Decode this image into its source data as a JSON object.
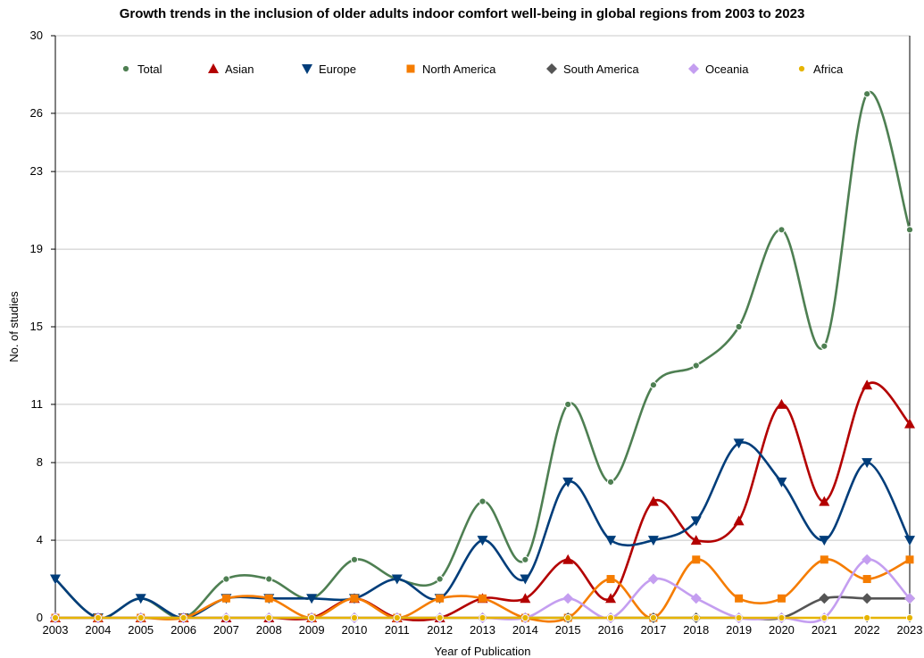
{
  "chart_data": {
    "type": "line",
    "title": "Growth trends in the inclusion of older adults indoor comfort well-being in global regions from 2003 to 2023",
    "xlabel": "Year of Publication",
    "ylabel": "No. of studies",
    "ylim": [
      0,
      30
    ],
    "y_ticks": [
      0,
      4,
      8,
      11,
      15,
      19,
      23,
      26,
      30
    ],
    "grid": "horizontal",
    "legend_position": "top",
    "categories": [
      "2003",
      "2004",
      "2005",
      "2006",
      "2007",
      "2008",
      "2009",
      "2010",
      "2011",
      "2012",
      "2013",
      "2014",
      "2015",
      "2016",
      "2017",
      "2018",
      "2019",
      "2020",
      "2021",
      "2022",
      "2023"
    ],
    "series": [
      {
        "name": "Total",
        "color": "#4e7f52",
        "marker": "circle",
        "values": [
          2,
          0,
          1,
          0,
          2,
          2,
          1,
          3,
          2,
          2,
          6,
          3,
          11,
          7,
          12,
          13,
          15,
          20,
          14,
          27,
          20
        ]
      },
      {
        "name": "Asian",
        "color": "#b30000",
        "marker": "triangle-up",
        "values": [
          0,
          0,
          0,
          0,
          0,
          0,
          0,
          1,
          0,
          0,
          1,
          1,
          3,
          1,
          6,
          4,
          5,
          11,
          6,
          12,
          10
        ]
      },
      {
        "name": "Europe",
        "color": "#003d7a",
        "marker": "triangle-down",
        "values": [
          2,
          0,
          1,
          0,
          1,
          1,
          1,
          1,
          2,
          1,
          4,
          2,
          7,
          4,
          4,
          5,
          9,
          7,
          4,
          8,
          4
        ]
      },
      {
        "name": "North America",
        "color": "#f57c00",
        "marker": "square",
        "values": [
          0,
          0,
          0,
          0,
          1,
          1,
          0,
          1,
          0,
          1,
          1,
          0,
          0,
          2,
          0,
          3,
          1,
          1,
          3,
          2,
          3
        ]
      },
      {
        "name": "South America",
        "color": "#555555",
        "marker": "diamond",
        "values": [
          0,
          0,
          0,
          0,
          0,
          0,
          0,
          0,
          0,
          0,
          0,
          0,
          0,
          0,
          0,
          0,
          0,
          0,
          1,
          1,
          1
        ]
      },
      {
        "name": "Oceania",
        "color": "#c49ef0",
        "marker": "diamond",
        "values": [
          0,
          0,
          0,
          0,
          0,
          0,
          0,
          0,
          0,
          0,
          0,
          0,
          1,
          0,
          2,
          1,
          0,
          0,
          0,
          3,
          1
        ]
      },
      {
        "name": "Africa",
        "color": "#e6b400",
        "marker": "circle",
        "values": [
          0,
          0,
          0,
          0,
          0,
          0,
          0,
          0,
          0,
          0,
          0,
          0,
          0,
          0,
          0,
          0,
          0,
          0,
          0,
          0,
          0
        ]
      }
    ]
  }
}
